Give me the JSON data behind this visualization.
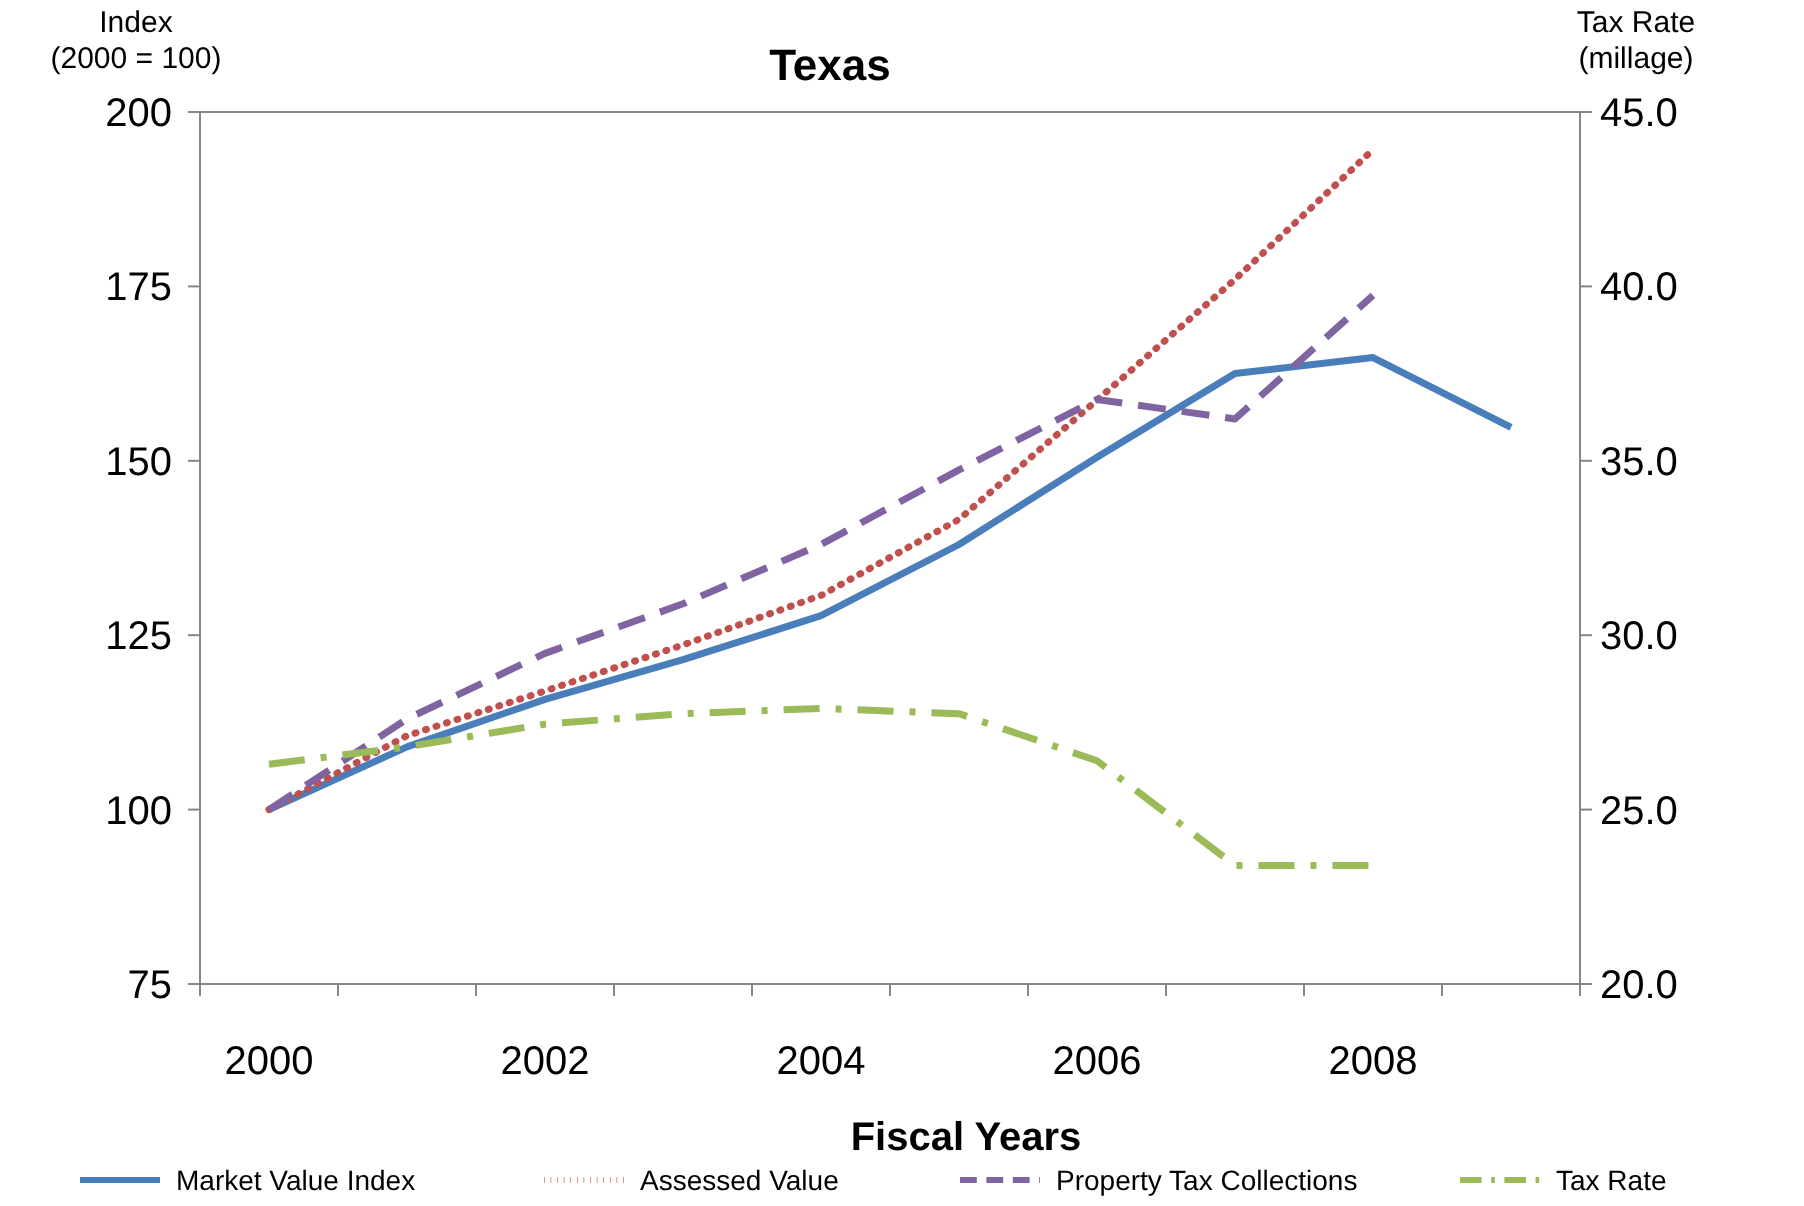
{
  "chart_data": {
    "type": "line",
    "title": "Texas",
    "xlabel": "Fiscal Years",
    "ylabel": "Index\n(2000 = 100)",
    "y2label": "Tax Rate\n(millage)",
    "categories": [
      "2000",
      null,
      "2002",
      null,
      "2004",
      null,
      "2006",
      null,
      "2008",
      null
    ],
    "ylim": [
      75,
      200
    ],
    "yticks": [
      75,
      100,
      125,
      150,
      175,
      200
    ],
    "y2lim": [
      20,
      45
    ],
    "y2ticks": [
      {
        "value": 20,
        "label": "20.0"
      },
      {
        "value": 25,
        "label": "25.0"
      },
      {
        "value": 30,
        "label": "30.0"
      },
      {
        "value": 35,
        "label": "35.0"
      },
      {
        "value": 40,
        "label": "40.0"
      },
      {
        "value": 45,
        "label": "45.0"
      }
    ],
    "legend": "bottom",
    "grid": false,
    "marker": "none",
    "series": [
      {
        "name": "Market Value Index",
        "color": "#4a7ebb",
        "line_style": "solid",
        "values": [
          100,
          109,
          115.8,
          121.5,
          127.8,
          138,
          150.5,
          162.5,
          164.8,
          154.8
        ]
      },
      {
        "name": "Assessed Value",
        "color": "#c0504d",
        "line_style": "dotted",
        "values": [
          100,
          110.6,
          117,
          123.6,
          130.7,
          141.6,
          158.7,
          176,
          194.6,
          null
        ]
      },
      {
        "name": "Property Tax Collections",
        "color": "#8064a2",
        "line_style": "dashed",
        "values": [
          100,
          113,
          122.4,
          129.5,
          138,
          148.7,
          158.8,
          156,
          173.7,
          null
        ]
      },
      {
        "name": "Tax Rate",
        "color": "#9bbb59",
        "line_style": "dashdot",
        "axis": "y2",
        "values": [
          26.3,
          26.8,
          27.45,
          27.75,
          27.9,
          27.75,
          26.4,
          23.4,
          23.4,
          null
        ]
      }
    ]
  }
}
